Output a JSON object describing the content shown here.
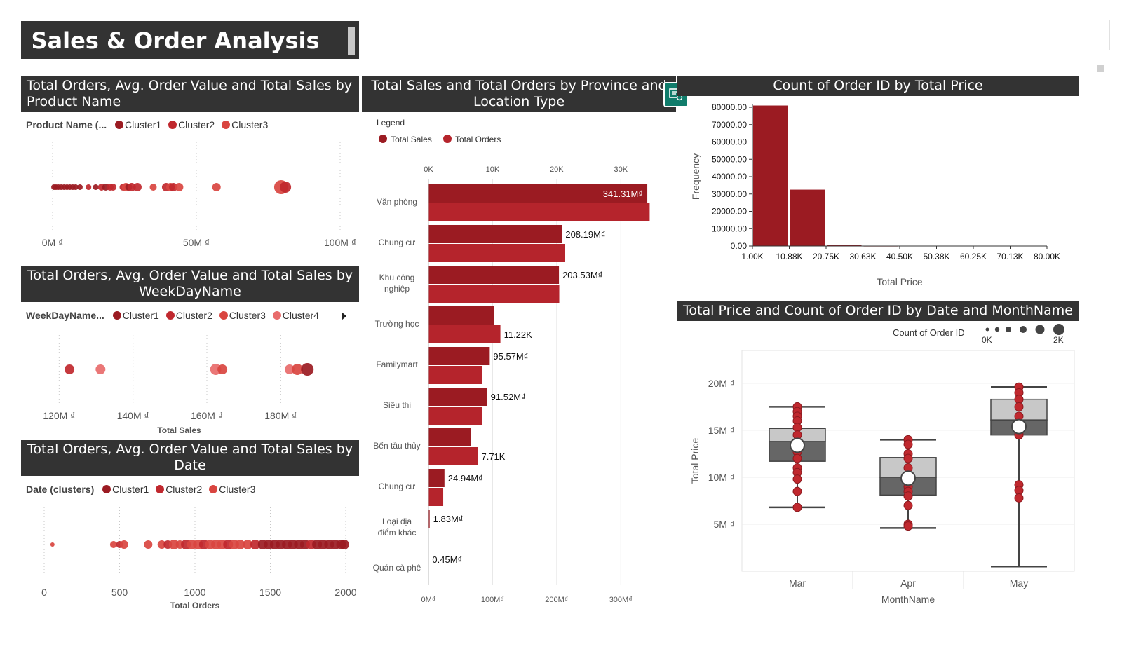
{
  "report": {
    "title": "Sales & Order Analysis"
  },
  "panels": {
    "product": {
      "title": "Total Orders, Avg. Order Value and Total Sales by Product Name",
      "legend_label": "Product Name (...",
      "legend_items": [
        "Cluster1",
        "Cluster2",
        "Cluster3"
      ]
    },
    "weekday": {
      "title": "Total Orders, Avg. Order Value and Total Sales by WeekDayName",
      "legend_label": "WeekDayName...",
      "legend_items": [
        "Cluster1",
        "Cluster2",
        "Cluster3",
        "Cluster4"
      ]
    },
    "date": {
      "title": "Total Orders, Avg. Order Value and Total Sales by Date",
      "legend_label": "Date (clusters)",
      "legend_items": [
        "Cluster1",
        "Cluster2",
        "Cluster3"
      ]
    },
    "province": {
      "title": "Total Sales and Total Orders by Province and Location Type",
      "legend_title": "Legend",
      "legend_items": [
        "Total Sales",
        "Total Orders"
      ]
    },
    "histogram": {
      "title": "Count of Order ID by Total Price"
    },
    "boxplot": {
      "title": "Total Price and Count of Order ID by Date and MonthName",
      "size_legend_title": "Count of Order ID",
      "size_legend_min": "0K",
      "size_legend_max": "2K"
    }
  },
  "icons": {
    "copy": "copy-visual-icon",
    "expand": "chevron-right-icon"
  },
  "colors": {
    "header_bg": "#333333",
    "dark_red": "#9b1b22",
    "red": "#b5242c",
    "cluster1": "#9b1b22",
    "cluster2": "#c0282e",
    "cluster3": "#d94540",
    "cluster4": "#e86b6b",
    "box_light": "#c8c8c8",
    "box_dark": "#666666"
  },
  "chart_data": [
    {
      "id": "product_scatter",
      "type": "scatter",
      "title": "",
      "xlabel": "",
      "xlim": [
        0,
        100
      ],
      "x_ticks": [
        "0M ₫",
        "50M ₫",
        "100M ₫"
      ],
      "points": [
        {
          "x": 0.5,
          "r": 4,
          "c": 0
        },
        {
          "x": 1.2,
          "r": 4,
          "c": 0
        },
        {
          "x": 2,
          "r": 4,
          "c": 0
        },
        {
          "x": 3,
          "r": 4,
          "c": 0
        },
        {
          "x": 4,
          "r": 4,
          "c": 0
        },
        {
          "x": 5,
          "r": 4,
          "c": 0
        },
        {
          "x": 6,
          "r": 4,
          "c": 0
        },
        {
          "x": 7,
          "r": 4,
          "c": 0
        },
        {
          "x": 8,
          "r": 4,
          "c": 0
        },
        {
          "x": 9.5,
          "r": 4,
          "c": 0
        },
        {
          "x": 12.5,
          "r": 4,
          "c": 1
        },
        {
          "x": 15,
          "r": 4,
          "c": 0
        },
        {
          "x": 17,
          "r": 5,
          "c": 1
        },
        {
          "x": 18.5,
          "r": 5,
          "c": 0
        },
        {
          "x": 20,
          "r": 5,
          "c": 1
        },
        {
          "x": 21,
          "r": 5,
          "c": 1
        },
        {
          "x": 24.5,
          "r": 5,
          "c": 1
        },
        {
          "x": 25.5,
          "r": 6,
          "c": 2
        },
        {
          "x": 26.5,
          "r": 5,
          "c": 0
        },
        {
          "x": 27.5,
          "r": 6,
          "c": 1
        },
        {
          "x": 29.5,
          "r": 6,
          "c": 1
        },
        {
          "x": 35,
          "r": 5,
          "c": 2
        },
        {
          "x": 39.5,
          "r": 6,
          "c": 1
        },
        {
          "x": 41,
          "r": 6,
          "c": 2
        },
        {
          "x": 42,
          "r": 6,
          "c": 1
        },
        {
          "x": 44,
          "r": 6,
          "c": 2
        },
        {
          "x": 57,
          "r": 6,
          "c": 2
        },
        {
          "x": 79.5,
          "r": 10,
          "c": 2
        },
        {
          "x": 81,
          "r": 8,
          "c": 1
        }
      ]
    },
    {
      "id": "weekday_scatter",
      "type": "scatter",
      "title": "",
      "xlabel": "Total Sales",
      "xlim": [
        115,
        190
      ],
      "x_ticks": [
        "120M ₫",
        "140M ₫",
        "160M ₫",
        "180M ₫"
      ],
      "x_tick_values": [
        120,
        140,
        160,
        180
      ],
      "points": [
        {
          "x": 122.8,
          "r": 7,
          "c": 1
        },
        {
          "x": 131.2,
          "r": 7,
          "c": 3
        },
        {
          "x": 162.4,
          "r": 8,
          "c": 3
        },
        {
          "x": 164.2,
          "r": 7,
          "c": 2
        },
        {
          "x": 182.4,
          "r": 7,
          "c": 3
        },
        {
          "x": 184.5,
          "r": 8,
          "c": 2
        },
        {
          "x": 187.2,
          "r": 9,
          "c": 0
        }
      ]
    },
    {
      "id": "date_scatter",
      "type": "scatter",
      "title": "",
      "xlabel": "Total Orders",
      "xlim": [
        0,
        2000
      ],
      "x_ticks": [
        "0",
        "500",
        "1000",
        "1500",
        "2000"
      ],
      "x_tick_values": [
        0,
        500,
        1000,
        1500,
        2000
      ],
      "points": [
        {
          "x": 55,
          "r": 3,
          "c": 2
        },
        {
          "x": 460,
          "r": 5,
          "c": 2
        },
        {
          "x": 500,
          "r": 5,
          "c": 1
        },
        {
          "x": 530,
          "r": 6,
          "c": 2
        },
        {
          "x": 690,
          "r": 6,
          "c": 2
        },
        {
          "x": 780,
          "r": 6,
          "c": 2
        },
        {
          "x": 820,
          "r": 6,
          "c": 1
        },
        {
          "x": 860,
          "r": 7,
          "c": 2
        },
        {
          "x": 900,
          "r": 6,
          "c": 2
        },
        {
          "x": 940,
          "r": 7,
          "c": 1
        },
        {
          "x": 980,
          "r": 7,
          "c": 2
        },
        {
          "x": 1020,
          "r": 7,
          "c": 2
        },
        {
          "x": 1060,
          "r": 7,
          "c": 1
        },
        {
          "x": 1100,
          "r": 7,
          "c": 2
        },
        {
          "x": 1140,
          "r": 7,
          "c": 2
        },
        {
          "x": 1180,
          "r": 7,
          "c": 2
        },
        {
          "x": 1220,
          "r": 7,
          "c": 1
        },
        {
          "x": 1260,
          "r": 7,
          "c": 2
        },
        {
          "x": 1300,
          "r": 7,
          "c": 2
        },
        {
          "x": 1350,
          "r": 7,
          "c": 2
        },
        {
          "x": 1400,
          "r": 7,
          "c": 1
        },
        {
          "x": 1450,
          "r": 7,
          "c": 0
        },
        {
          "x": 1490,
          "r": 7,
          "c": 0
        },
        {
          "x": 1530,
          "r": 7,
          "c": 0
        },
        {
          "x": 1570,
          "r": 7,
          "c": 0
        },
        {
          "x": 1610,
          "r": 7,
          "c": 0
        },
        {
          "x": 1650,
          "r": 7,
          "c": 0
        },
        {
          "x": 1690,
          "r": 7,
          "c": 0
        },
        {
          "x": 1730,
          "r": 7,
          "c": 0
        },
        {
          "x": 1770,
          "r": 7,
          "c": 1
        },
        {
          "x": 1810,
          "r": 7,
          "c": 0
        },
        {
          "x": 1850,
          "r": 7,
          "c": 0
        },
        {
          "x": 1890,
          "r": 7,
          "c": 0
        },
        {
          "x": 1930,
          "r": 7,
          "c": 0
        },
        {
          "x": 1970,
          "r": 7,
          "c": 0
        },
        {
          "x": 1990,
          "r": 7,
          "c": 0
        }
      ]
    },
    {
      "id": "province_bar",
      "type": "bar",
      "title": "",
      "orientation": "horizontal",
      "categories": [
        "Văn phòng",
        "Chung cư",
        "Khu công nghiệp",
        "Trường học",
        "Familymart",
        "Siêu thị",
        "Bến tầu thủy",
        "Chung cư",
        "Loại địa điểm khác",
        "Quán cà phê"
      ],
      "top_axis": {
        "ticks": [
          "0K",
          "10K",
          "20K",
          "30K"
        ],
        "tick_values": [
          0,
          10,
          20,
          30
        ],
        "lim": [
          0,
          35
        ]
      },
      "bottom_axis": {
        "ticks": [
          "0M₫",
          "100M₫",
          "200M₫",
          "300M₫"
        ],
        "tick_values": [
          0,
          100,
          200,
          300
        ],
        "lim": [
          0,
          350
        ]
      },
      "series": [
        {
          "name": "Total Sales",
          "axis": "bottom",
          "values": [
            341.31,
            208.19,
            203.53,
            102,
            95.57,
            91.52,
            66,
            24.94,
            1.83,
            0.45
          ],
          "labels": [
            "341.31M₫",
            "208.19M₫",
            "203.53M₫",
            "",
            "95.57M₫",
            "91.52M₫",
            "",
            "24.94M₫",
            "1.83M₫",
            "0.45M₫"
          ]
        },
        {
          "name": "Total Orders",
          "axis": "top",
          "values": [
            34.5,
            21.3,
            20.4,
            11.22,
            8.4,
            8.4,
            7.71,
            2.3,
            0,
            0
          ],
          "labels": [
            "",
            "",
            "",
            "11.22K",
            "",
            "",
            "7.71K",
            "",
            "",
            ""
          ]
        }
      ]
    },
    {
      "id": "price_histogram",
      "type": "bar",
      "title": "",
      "xlabel": "Total Price",
      "ylabel": "Frequency",
      "x_ticks": [
        "1.00K",
        "10.88K",
        "20.75K",
        "30.63K",
        "40.50K",
        "50.38K",
        "60.25K",
        "70.13K",
        "80.00K"
      ],
      "y_ticks": [
        "0.00",
        "10000.00",
        "20000.00",
        "30000.00",
        "40000.00",
        "50000.00",
        "60000.00",
        "70000.00",
        "80000.00"
      ],
      "ylim": [
        0,
        80000
      ],
      "values": [
        81000,
        32500,
        400,
        150,
        0,
        0,
        0,
        0
      ]
    },
    {
      "id": "month_boxplot",
      "type": "box",
      "title": "",
      "xlabel": "MonthName",
      "ylabel": "Total Price",
      "categories": [
        "Mar",
        "Apr",
        "May"
      ],
      "y_ticks": [
        "5M ₫",
        "10M ₫",
        "15M ₫",
        "20M ₫"
      ],
      "y_tick_values": [
        5,
        10,
        15,
        20
      ],
      "ylim": [
        0,
        23.5
      ],
      "boxes": [
        {
          "min": 6.8,
          "q1": 11.7,
          "median": 13.8,
          "q3": 15.2,
          "max": 17.5,
          "mean": 13.4,
          "extra": 13.8,
          "points": [
            17.5,
            17.0,
            16.5,
            16.0,
            15.3,
            14.5,
            13.4,
            12.7,
            12.0,
            11.0,
            10.5,
            9.8,
            8.5,
            6.8
          ]
        },
        {
          "min": 4.6,
          "q1": 8.1,
          "median": 10.0,
          "q3": 12.1,
          "max": 14.0,
          "mean": 9.9,
          "extra": 10.0,
          "points": [
            14.0,
            13.5,
            12.5,
            12.0,
            11.0,
            10.0,
            9.0,
            8.5,
            8.0,
            7.0,
            5.0,
            4.8
          ]
        },
        {
          "min": 0.5,
          "q1": 14.5,
          "median": 16.1,
          "q3": 18.3,
          "max": 19.6,
          "mean": 15.4,
          "extra": 16.1,
          "points": [
            19.6,
            19.0,
            18.3,
            17.5,
            16.5,
            15.5,
            14.8,
            14.5,
            9.2,
            8.6,
            7.8
          ]
        }
      ]
    }
  ]
}
